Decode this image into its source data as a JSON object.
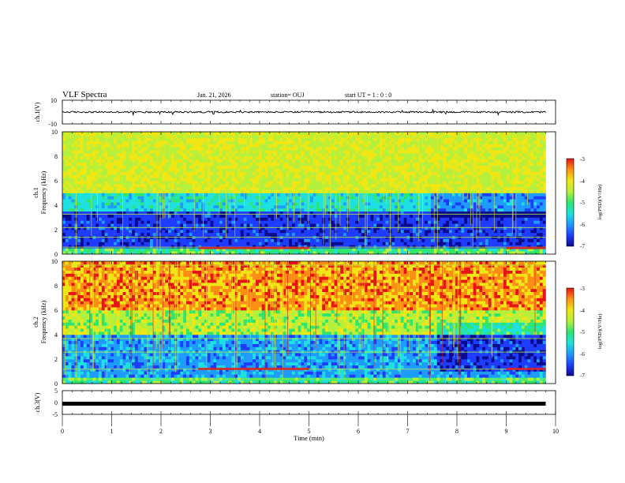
{
  "header": {
    "title": "VLF Spectra",
    "date": "Jan. 21, 2026",
    "station": "station= OUJ",
    "start": "start  UT =  1 : 0  : 0"
  },
  "chart_data": [
    {
      "type": "line",
      "name": "ch1-waveform",
      "ylabel": "ch.1(V)",
      "ylim": [
        -10,
        10
      ],
      "yticks": [
        "10",
        "-10"
      ],
      "level_v": 0,
      "grid": false
    },
    {
      "type": "heatmap",
      "name": "ch1-spectrogram",
      "ylabel_line1": "ch.1",
      "ylabel_line2": "Frequency (kHz)",
      "ylim": [
        0,
        10
      ],
      "yticks": [
        "0",
        "2",
        "4",
        "6",
        "8",
        "10"
      ],
      "colorbar": {
        "label": "log(PSD)(V²/Hz)",
        "range": [
          -7,
          -3
        ],
        "ticks": [
          "-3",
          "-4",
          "-5",
          "-6",
          "-7"
        ]
      }
    },
    {
      "type": "heatmap",
      "name": "ch2-spectrogram",
      "ylabel_line1": "ch.2",
      "ylabel_line2": "Frequency (kHz)",
      "ylim": [
        0,
        10
      ],
      "yticks": [
        "0",
        "2",
        "4",
        "6",
        "8",
        "10"
      ],
      "colorbar": {
        "label": "log(PSD)(V²/Hz)",
        "range": [
          -7,
          -3
        ],
        "ticks": [
          "-3",
          "-4",
          "-5",
          "-6",
          "-7"
        ]
      }
    },
    {
      "type": "line",
      "name": "ch3-waveform",
      "ylabel": "ch.3(V)",
      "ylim": [
        -5,
        5
      ],
      "yticks": [
        "5",
        "0",
        "-5"
      ],
      "level_v": 0,
      "grid": false
    }
  ],
  "xaxis": {
    "label": "Time (min)",
    "range": [
      0,
      10
    ],
    "ticks": [
      "0",
      "1",
      "2",
      "3",
      "4",
      "5",
      "6",
      "7",
      "8",
      "9",
      "10"
    ],
    "data_end_min": 9.8
  },
  "colors": {
    "scale": [
      "#0a0a8c",
      "#1e3cff",
      "#1e9bff",
      "#1ee0e0",
      "#2ee66e",
      "#b4f03c",
      "#f0e614",
      "#ff8c14",
      "#e61414"
    ]
  }
}
